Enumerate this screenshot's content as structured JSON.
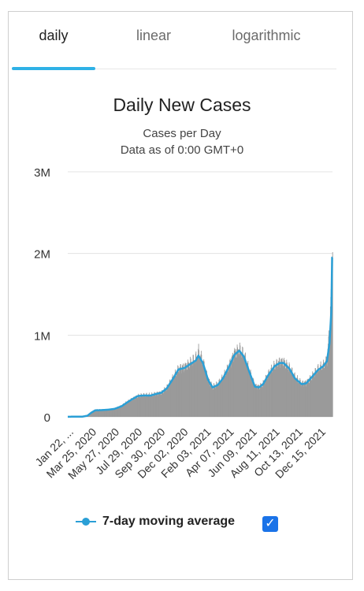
{
  "tabs": [
    {
      "label": "daily"
    },
    {
      "label": "linear"
    },
    {
      "label": "logarithmic"
    }
  ],
  "legend": {
    "label": "7-day moving average",
    "checkbox_checked": true,
    "checkbox_glyph": "✓"
  },
  "colors": {
    "bars": "#9a9a9a",
    "moving_average": "#2a9fd6",
    "active_tab": "#2fb1e6",
    "checkbox": "#1a73e8"
  },
  "chart_data": {
    "type": "bar",
    "title": "Daily New Cases",
    "subtitle": "Cases per Day",
    "subtitle2": "Data as of 0:00 GMT+0",
    "ylim": [
      0,
      3000000
    ],
    "yticks": [
      {
        "value": 0,
        "label": "0"
      },
      {
        "value": 1000000,
        "label": "1M"
      },
      {
        "value": 2000000,
        "label": "2M"
      },
      {
        "value": 3000000,
        "label": "3M"
      }
    ],
    "xticks": [
      "Jan 22, ...",
      "Mar 25, 2020",
      "May 27, 2020",
      "Jul 29, 2020",
      "Sep 30, 2020",
      "Dec 02, 2020",
      "Feb 03, 2021",
      "Apr 07, 2021",
      "Jun 09, 2021",
      "Aug 11, 2021",
      "Oct 13, 2021",
      "Dec 15, 2021"
    ],
    "x_range": [
      "2020-01-22",
      "2022-01-04"
    ],
    "grid": true,
    "series": [
      {
        "name": "daily",
        "kind": "bar",
        "points": [
          [
            "2020-01-22",
            500
          ],
          [
            "2020-02-05",
            3000
          ],
          [
            "2020-02-15",
            2500
          ],
          [
            "2020-03-01",
            2000
          ],
          [
            "2020-03-15",
            15000
          ],
          [
            "2020-03-25",
            55000
          ],
          [
            "2020-04-05",
            85000
          ],
          [
            "2020-04-20",
            85000
          ],
          [
            "2020-05-10",
            90000
          ],
          [
            "2020-05-27",
            100000
          ],
          [
            "2020-06-15",
            135000
          ],
          [
            "2020-07-01",
            185000
          ],
          [
            "2020-07-15",
            225000
          ],
          [
            "2020-07-29",
            260000
          ],
          [
            "2020-08-15",
            265000
          ],
          [
            "2020-09-01",
            265000
          ],
          [
            "2020-09-15",
            285000
          ],
          [
            "2020-09-30",
            300000
          ],
          [
            "2020-10-15",
            360000
          ],
          [
            "2020-11-01",
            480000
          ],
          [
            "2020-11-15",
            590000
          ],
          [
            "2020-12-02",
            620000
          ],
          [
            "2020-12-15",
            660000
          ],
          [
            "2021-01-01",
            720000
          ],
          [
            "2021-01-08",
            800000
          ],
          [
            "2021-01-20",
            680000
          ],
          [
            "2021-02-03",
            460000
          ],
          [
            "2021-02-15",
            370000
          ],
          [
            "2021-03-01",
            400000
          ],
          [
            "2021-03-15",
            480000
          ],
          [
            "2021-04-01",
            640000
          ],
          [
            "2021-04-15",
            790000
          ],
          [
            "2021-04-28",
            830000
          ],
          [
            "2021-05-10",
            760000
          ],
          [
            "2021-05-25",
            560000
          ],
          [
            "2021-06-09",
            380000
          ],
          [
            "2021-06-20",
            370000
          ],
          [
            "2021-07-01",
            410000
          ],
          [
            "2021-07-15",
            520000
          ],
          [
            "2021-08-01",
            630000
          ],
          [
            "2021-08-15",
            680000
          ],
          [
            "2021-08-25",
            680000
          ],
          [
            "2021-09-10",
            600000
          ],
          [
            "2021-09-25",
            480000
          ],
          [
            "2021-10-13",
            410000
          ],
          [
            "2021-10-25",
            420000
          ],
          [
            "2021-11-10",
            500000
          ],
          [
            "2021-11-25",
            580000
          ],
          [
            "2021-12-10",
            630000
          ],
          [
            "2021-12-20",
            700000
          ],
          [
            "2021-12-27",
            1100000
          ],
          [
            "2022-01-01",
            1600000
          ],
          [
            "2022-01-03",
            2200000
          ]
        ]
      },
      {
        "name": "7-day moving average",
        "kind": "line",
        "points": [
          [
            "2020-01-22",
            500
          ],
          [
            "2020-02-05",
            2500
          ],
          [
            "2020-02-15",
            2200
          ],
          [
            "2020-03-01",
            2000
          ],
          [
            "2020-03-15",
            14000
          ],
          [
            "2020-03-25",
            50000
          ],
          [
            "2020-04-05",
            80000
          ],
          [
            "2020-04-20",
            82000
          ],
          [
            "2020-05-10",
            88000
          ],
          [
            "2020-05-27",
            98000
          ],
          [
            "2020-06-15",
            130000
          ],
          [
            "2020-07-01",
            180000
          ],
          [
            "2020-07-15",
            220000
          ],
          [
            "2020-07-29",
            255000
          ],
          [
            "2020-08-15",
            262000
          ],
          [
            "2020-09-01",
            260000
          ],
          [
            "2020-09-15",
            280000
          ],
          [
            "2020-09-30",
            295000
          ],
          [
            "2020-10-15",
            350000
          ],
          [
            "2020-11-01",
            470000
          ],
          [
            "2020-11-15",
            580000
          ],
          [
            "2020-12-02",
            600000
          ],
          [
            "2020-12-15",
            640000
          ],
          [
            "2021-01-01",
            690000
          ],
          [
            "2021-01-08",
            750000
          ],
          [
            "2021-01-20",
            660000
          ],
          [
            "2021-02-03",
            450000
          ],
          [
            "2021-02-15",
            360000
          ],
          [
            "2021-03-01",
            390000
          ],
          [
            "2021-03-15",
            470000
          ],
          [
            "2021-04-01",
            620000
          ],
          [
            "2021-04-15",
            760000
          ],
          [
            "2021-04-28",
            810000
          ],
          [
            "2021-05-10",
            740000
          ],
          [
            "2021-05-25",
            550000
          ],
          [
            "2021-06-09",
            370000
          ],
          [
            "2021-06-20",
            360000
          ],
          [
            "2021-07-01",
            400000
          ],
          [
            "2021-07-15",
            510000
          ],
          [
            "2021-08-01",
            620000
          ],
          [
            "2021-08-15",
            660000
          ],
          [
            "2021-08-25",
            660000
          ],
          [
            "2021-09-10",
            590000
          ],
          [
            "2021-09-25",
            470000
          ],
          [
            "2021-10-13",
            400000
          ],
          [
            "2021-10-25",
            410000
          ],
          [
            "2021-11-10",
            490000
          ],
          [
            "2021-11-25",
            570000
          ],
          [
            "2021-12-10",
            620000
          ],
          [
            "2021-12-20",
            680000
          ],
          [
            "2021-12-27",
            900000
          ],
          [
            "2022-01-01",
            1300000
          ],
          [
            "2022-01-03",
            1950000
          ]
        ]
      }
    ]
  }
}
